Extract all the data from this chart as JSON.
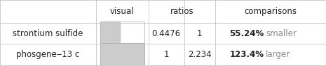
{
  "rows": [
    {
      "name": "strontium sulfide",
      "ratio1": "0.4476",
      "ratio2": "1",
      "comparison_pct": "55.24%",
      "comparison_word": "smaller",
      "bar_fill": 0.4476
    },
    {
      "name": "phosgene‒13 c",
      "ratio1": "1",
      "ratio2": "2.234",
      "comparison_pct": "123.4%",
      "comparison_word": "larger",
      "bar_fill": 1.0
    }
  ],
  "col_headers": [
    "visual",
    "ratios",
    "comparisons"
  ],
  "bar_color": "#cccccc",
  "bar_bg_color": "#ffffff",
  "bar_border_color": "#aaaaaa",
  "text_color": "#222222",
  "comparison_word_color": "#888888",
  "grid_color": "#cccccc",
  "background_color": "#ffffff",
  "font_size": 8.5,
  "header_font_size": 8.5
}
